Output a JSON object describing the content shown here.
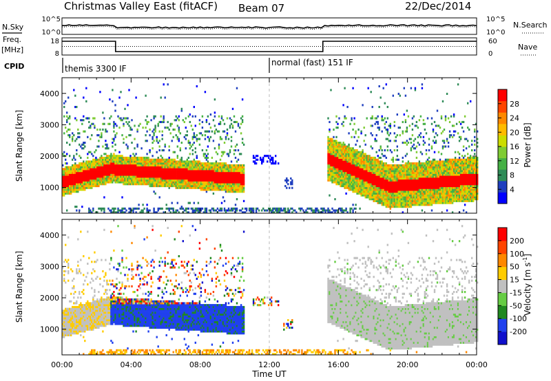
{
  "header": {
    "title": "Christmas Valley East (fitACF)",
    "beam": "Beam 07",
    "date": "22/Dec/2014"
  },
  "noise_panel": {
    "left_label": "N.Sky",
    "right_label": "N.Search",
    "left_ticks": [
      "10^5",
      "10^0"
    ],
    "right_ticks": [
      "10^5",
      "10^0"
    ]
  },
  "freq_panel": {
    "left_label_1": "Freq.",
    "left_label_2": "[MHz]",
    "right_label": "Nave",
    "left_ticks": [
      "18",
      "8"
    ],
    "right_ticks": [
      "60",
      "0"
    ],
    "freq_high_mhz": 16,
    "freq_low_mhz": 10,
    "freq_low_start_hour": 3.1,
    "freq_low_end_hour": 15.1,
    "nave_level": 30
  },
  "cpid": {
    "label": "CPID",
    "segments": [
      {
        "name": "themis 3300 IF",
        "start_hour": 0
      },
      {
        "name": "normal (fast) 151 IF",
        "start_hour": 12
      }
    ]
  },
  "chart_data": [
    {
      "type": "heatmap",
      "name": "power",
      "ylabel": "Slant Range [km]",
      "xlabel": "",
      "xlim": [
        0,
        24
      ],
      "ylim": [
        180,
        4500
      ],
      "yticks": [
        "1000",
        "2000",
        "3000",
        "4000"
      ],
      "colorbar_label": "Power [dB]",
      "colorbar_ticks": [
        "28",
        "24",
        "20",
        "16",
        "12",
        "8",
        "4"
      ],
      "colors": [
        "#0000ff",
        "#1f3fbf",
        "#2e8b57",
        "#44b044",
        "#7fcc33",
        "#ccdd00",
        "#ffbb00",
        "#ff8800",
        "#ff4400",
        "#ff0000"
      ]
    },
    {
      "type": "heatmap",
      "name": "velocity",
      "ylabel": "Slant Range [km]",
      "xlabel": "Time UT",
      "xlim": [
        0,
        24
      ],
      "ylim": [
        180,
        4500
      ],
      "yticks": [
        "1000",
        "2000",
        "3000",
        "4000"
      ],
      "xticks": [
        "00:00",
        "04:00",
        "08:00",
        "12:00",
        "16:00",
        "20:00",
        "00:00"
      ],
      "colorbar_label": "Velocity [m s",
      "colorbar_label_sup": "-1",
      "colorbar_label_end": "]",
      "colorbar_ticks": [
        "200",
        "100",
        "50",
        "15",
        "-15",
        "-50",
        "-100",
        "-200"
      ],
      "colors": [
        "#1010cc",
        "#2040ee",
        "#208820",
        "#66cc44",
        "#c0c0c0",
        "#ffcc00",
        "#ff8800",
        "#ff4400",
        "#ff0000"
      ]
    }
  ]
}
